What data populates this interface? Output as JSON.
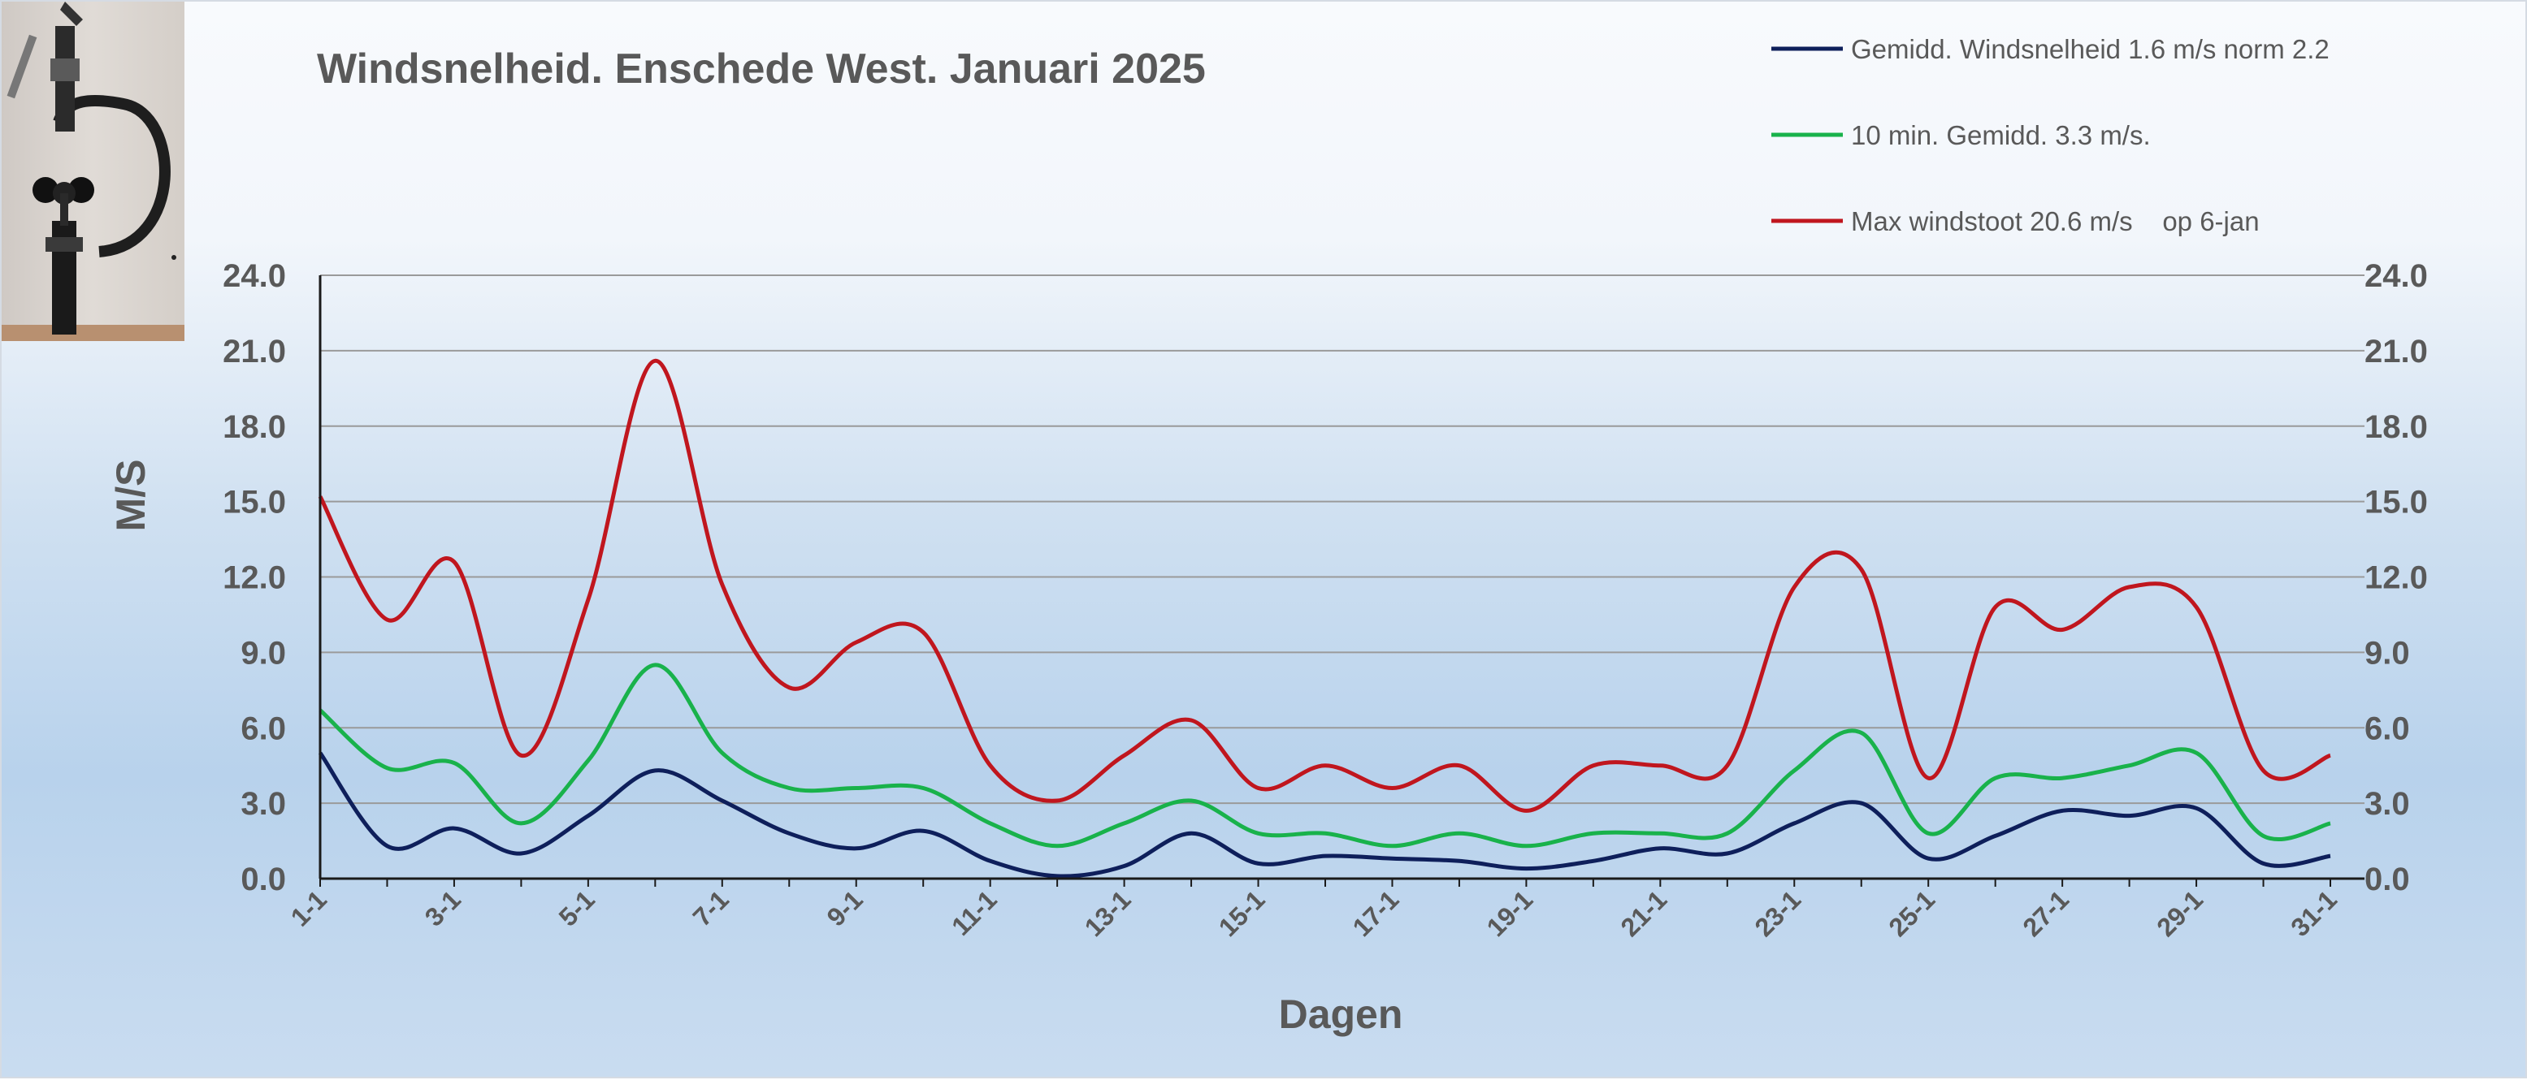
{
  "chart_data": {
    "type": "line",
    "title": "Windsnelheid. Enschede West. Januari 2025",
    "xlabel": "Dagen",
    "ylabel": "M/S",
    "ylim": [
      0,
      24
    ],
    "yticks": [
      "0.0",
      "3.0",
      "6.0",
      "9.0",
      "12.0",
      "15.0",
      "18.0",
      "21.0",
      "24.0"
    ],
    "grid": true,
    "legend_position": "top-right",
    "x_tick_labels": [
      "1-1",
      "3-1",
      "5-1",
      "7-1",
      "9-1",
      "11-1",
      "13-1",
      "15-1",
      "17-1",
      "19-1",
      "21-1",
      "23-1",
      "25-1",
      "27-1",
      "29-1",
      "31-1"
    ],
    "categories": [
      "1-1",
      "2-1",
      "3-1",
      "4-1",
      "5-1",
      "6-1",
      "7-1",
      "8-1",
      "9-1",
      "10-1",
      "11-1",
      "12-1",
      "13-1",
      "14-1",
      "15-1",
      "16-1",
      "17-1",
      "18-1",
      "19-1",
      "20-1",
      "21-1",
      "22-1",
      "23-1",
      "24-1",
      "25-1",
      "26-1",
      "27-1",
      "28-1",
      "29-1",
      "30-1",
      "31-1"
    ],
    "series": [
      {
        "name": "Gemidd. Windsnelheid 1.6 m/s norm 2.2",
        "color": "#0e1f5b",
        "values": [
          5.0,
          1.3,
          2.0,
          1.0,
          2.5,
          4.3,
          3.1,
          1.8,
          1.2,
          1.9,
          0.7,
          0.1,
          0.5,
          1.8,
          0.6,
          0.9,
          0.8,
          0.7,
          0.4,
          0.7,
          1.2,
          1.0,
          2.2,
          3.0,
          0.8,
          1.7,
          2.7,
          2.5,
          2.8,
          0.6,
          0.9
        ]
      },
      {
        "name": "10 min. Gemidd. 3.3 m/s.",
        "color": "#19b24b",
        "values": [
          6.7,
          4.4,
          4.6,
          2.2,
          4.7,
          8.5,
          5.0,
          3.6,
          3.6,
          3.6,
          2.2,
          1.3,
          2.2,
          3.1,
          1.8,
          1.8,
          1.3,
          1.8,
          1.3,
          1.8,
          1.8,
          1.8,
          4.3,
          5.8,
          1.8,
          4.0,
          4.0,
          4.5,
          5.0,
          1.7,
          2.2
        ]
      },
      {
        "name": "Max windstoot 20.6 m/s    op 6-jan",
        "color": "#c0161e",
        "values": [
          15.2,
          10.3,
          12.6,
          4.9,
          11.1,
          20.6,
          11.7,
          7.6,
          9.4,
          9.8,
          4.5,
          3.1,
          4.9,
          6.3,
          3.6,
          4.5,
          3.6,
          4.5,
          2.7,
          4.5,
          4.5,
          4.5,
          11.6,
          12.3,
          4.0,
          10.8,
          9.9,
          11.6,
          10.8,
          4.3,
          4.9
        ]
      }
    ]
  }
}
